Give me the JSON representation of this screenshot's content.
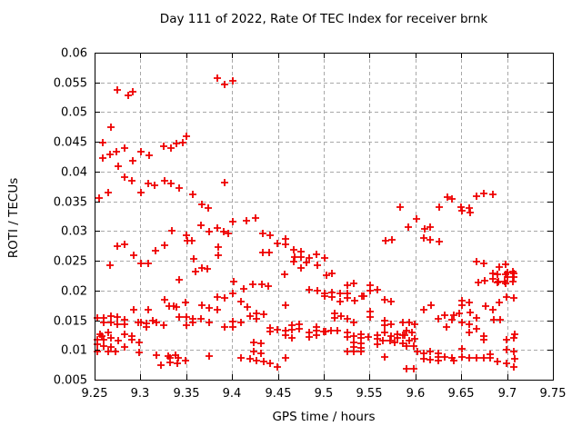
{
  "chart_data": {
    "type": "scatter",
    "title": "Day 111 of 2022, Rate Of TEC Index for receiver brnk",
    "xlabel": "GPS time / hours",
    "ylabel": "ROTI / TECUs",
    "xlim": [
      9.25,
      9.75
    ],
    "ylim": [
      0.005,
      0.06
    ],
    "xticks": [
      9.25,
      9.3,
      9.35,
      9.4,
      9.45,
      9.5,
      9.55,
      9.6,
      9.65,
      9.7,
      9.75
    ],
    "yticks": [
      0.005,
      0.01,
      0.015,
      0.02,
      0.025,
      0.03,
      0.035,
      0.04,
      0.045,
      0.05,
      0.055,
      0.06
    ],
    "xtick_labels": [
      "9.25",
      "9.3",
      "9.35",
      "9.4",
      "9.45",
      "9.5",
      "9.55",
      "9.6",
      "9.65",
      "9.7",
      "9.75"
    ],
    "ytick_labels": [
      "0.005",
      "0.01",
      "0.015",
      "0.02",
      "0.025",
      "0.03",
      "0.035",
      "0.04",
      "0.045",
      "0.05",
      "0.055",
      "0.06"
    ],
    "grid": "dashed",
    "grid_color": "#a8a8a8",
    "border_color": "#000000",
    "background": "#ffffff",
    "legend_position": "none",
    "marker": "plus",
    "marker_color": "#ee0000",
    "marker_size": 9,
    "points": [
      [
        9.2748,
        0.0537
      ],
      [
        9.2864,
        0.0528
      ],
      [
        9.2917,
        0.0535
      ],
      [
        9.3836,
        0.0557
      ],
      [
        9.3922,
        0.0546
      ],
      [
        9.4011,
        0.0553
      ],
      [
        9.2676,
        0.0474
      ],
      [
        9.2586,
        0.0449
      ],
      [
        9.2586,
        0.0423
      ],
      [
        9.2665,
        0.0429
      ],
      [
        9.2741,
        0.0434
      ],
      [
        9.283,
        0.044
      ],
      [
        9.2917,
        0.0418
      ],
      [
        9.3006,
        0.0433
      ],
      [
        9.3095,
        0.0428
      ],
      [
        9.3254,
        0.0442
      ],
      [
        9.3333,
        0.044
      ],
      [
        9.3393,
        0.0447
      ],
      [
        9.3462,
        0.0449
      ],
      [
        9.3502,
        0.046
      ],
      [
        9.2758,
        0.0409
      ],
      [
        9.283,
        0.039
      ],
      [
        9.2904,
        0.0385
      ],
      [
        9.3003,
        0.0364
      ],
      [
        9.3085,
        0.038
      ],
      [
        9.3151,
        0.0377
      ],
      [
        9.3267,
        0.0385
      ],
      [
        9.3337,
        0.038
      ],
      [
        9.342,
        0.0372
      ],
      [
        9.3915,
        0.0381
      ],
      [
        9.2645,
        0.0365
      ],
      [
        9.2553,
        0.0355
      ],
      [
        9.3574,
        0.0361
      ],
      [
        9.3674,
        0.0345
      ],
      [
        9.374,
        0.0338
      ],
      [
        9.4011,
        0.0316
      ],
      [
        9.3664,
        0.0309
      ],
      [
        9.3747,
        0.0299
      ],
      [
        9.3839,
        0.0305
      ],
      [
        9.3906,
        0.0299
      ],
      [
        9.3955,
        0.0296
      ],
      [
        9.416,
        0.0317
      ],
      [
        9.4259,
        0.0322
      ],
      [
        9.3343,
        0.03
      ],
      [
        9.3499,
        0.0293
      ],
      [
        9.3509,
        0.0283
      ],
      [
        9.3565,
        0.0284
      ],
      [
        9.3267,
        0.0276
      ],
      [
        9.3168,
        0.0267
      ],
      [
        9.2751,
        0.0274
      ],
      [
        9.283,
        0.0278
      ],
      [
        9.2923,
        0.026
      ],
      [
        9.3006,
        0.0246
      ],
      [
        9.3082,
        0.0246
      ],
      [
        9.2665,
        0.0243
      ],
      [
        9.3585,
        0.0253
      ],
      [
        9.3674,
        0.0238
      ],
      [
        9.373,
        0.0237
      ],
      [
        9.3849,
        0.0273
      ],
      [
        9.3849,
        0.0259
      ],
      [
        9.3601,
        0.0232
      ],
      [
        9.3426,
        0.0218
      ],
      [
        9.4021,
        0.0215
      ],
      [
        9.4127,
        0.0203
      ],
      [
        9.4332,
        0.0296
      ],
      [
        9.4415,
        0.0293
      ],
      [
        9.4497,
        0.0279
      ],
      [
        9.458,
        0.0287
      ],
      [
        9.458,
        0.0278
      ],
      [
        9.4332,
        0.0264
      ],
      [
        9.4405,
        0.0264
      ],
      [
        9.4669,
        0.0268
      ],
      [
        9.4752,
        0.0266
      ],
      [
        9.4679,
        0.0256
      ],
      [
        9.4752,
        0.0257
      ],
      [
        9.4669,
        0.0248
      ],
      [
        9.4844,
        0.0254
      ],
      [
        9.4815,
        0.0247
      ],
      [
        9.4921,
        0.0261
      ],
      [
        9.4927,
        0.0243
      ],
      [
        9.501,
        0.0255
      ],
      [
        9.4755,
        0.0238
      ],
      [
        9.5672,
        0.0283
      ],
      [
        9.5748,
        0.0285
      ],
      [
        9.5833,
        0.0341
      ],
      [
        9.6015,
        0.0321
      ],
      [
        9.5926,
        0.0307
      ],
      [
        9.6104,
        0.0304
      ],
      [
        9.6164,
        0.0306
      ],
      [
        9.6091,
        0.0288
      ],
      [
        9.6164,
        0.0286
      ],
      [
        9.6257,
        0.0282
      ],
      [
        9.6263,
        0.0341
      ],
      [
        9.6346,
        0.0357
      ],
      [
        9.6395,
        0.0354
      ],
      [
        9.6495,
        0.034
      ],
      [
        9.6511,
        0.0334
      ],
      [
        9.6587,
        0.0338
      ],
      [
        9.6594,
        0.0331
      ],
      [
        9.6667,
        0.0358
      ],
      [
        9.6743,
        0.0363
      ],
      [
        9.6842,
        0.0362
      ],
      [
        9.6667,
        0.0248
      ],
      [
        9.6743,
        0.0246
      ],
      [
        9.6915,
        0.0239
      ],
      [
        9.6981,
        0.0244
      ],
      [
        9.7007,
        0.023
      ],
      [
        9.7067,
        0.0232
      ],
      [
        9.7067,
        0.0223
      ],
      [
        9.7007,
        0.0222
      ],
      [
        9.6902,
        0.0215
      ],
      [
        9.6974,
        0.0215
      ],
      [
        9.7067,
        0.0215
      ],
      [
        9.6687,
        0.0214
      ],
      [
        9.6753,
        0.0216
      ],
      [
        9.6842,
        0.0219
      ],
      [
        9.6842,
        0.0229
      ],
      [
        9.6898,
        0.0227
      ],
      [
        9.6898,
        0.0213
      ],
      [
        9.6984,
        0.0227
      ],
      [
        9.6984,
        0.0212
      ],
      [
        9.7073,
        0.0229
      ],
      [
        9.7073,
        0.0222
      ],
      [
        9.457,
        0.0227
      ],
      [
        9.5027,
        0.0226
      ],
      [
        9.5093,
        0.0229
      ],
      [
        9.5331,
        0.0212
      ],
      [
        9.5258,
        0.0209
      ],
      [
        9.5506,
        0.0209
      ],
      [
        9.4227,
        0.021
      ],
      [
        9.4326,
        0.021
      ],
      [
        9.4399,
        0.0208
      ],
      [
        9.4845,
        0.0202
      ],
      [
        9.4934,
        0.0199
      ],
      [
        9.501,
        0.0195
      ],
      [
        9.501,
        0.019
      ],
      [
        9.5093,
        0.0197
      ],
      [
        9.5093,
        0.0189
      ],
      [
        9.5175,
        0.0195
      ],
      [
        9.5175,
        0.0182
      ],
      [
        9.5258,
        0.0195
      ],
      [
        9.5258,
        0.0187
      ],
      [
        9.5341,
        0.0183
      ],
      [
        9.542,
        0.019
      ],
      [
        9.544,
        0.019
      ],
      [
        9.5506,
        0.02
      ],
      [
        9.5582,
        0.0202
      ],
      [
        9.3261,
        0.0185
      ],
      [
        9.3313,
        0.0173
      ],
      [
        9.336,
        0.0173
      ],
      [
        9.3393,
        0.0172
      ],
      [
        9.3492,
        0.018
      ],
      [
        9.3674,
        0.0176
      ],
      [
        9.375,
        0.017
      ],
      [
        9.3839,
        0.0168
      ],
      [
        9.3839,
        0.0189
      ],
      [
        9.3922,
        0.0188
      ],
      [
        9.4005,
        0.0195
      ],
      [
        9.4094,
        0.0182
      ],
      [
        9.2923,
        0.0167
      ],
      [
        9.3088,
        0.0168
      ],
      [
        9.2527,
        0.0154
      ],
      [
        9.2599,
        0.0154
      ],
      [
        9.2681,
        0.0157
      ],
      [
        9.2748,
        0.0156
      ],
      [
        9.2599,
        0.0147
      ],
      [
        9.2681,
        0.0147
      ],
      [
        9.2748,
        0.0143
      ],
      [
        9.283,
        0.0151
      ],
      [
        9.283,
        0.0143
      ],
      [
        9.2979,
        0.0147
      ],
      [
        9.3003,
        0.0147
      ],
      [
        9.3069,
        0.0144
      ],
      [
        9.3069,
        0.0138
      ],
      [
        9.3135,
        0.015
      ],
      [
        9.3177,
        0.0147
      ],
      [
        9.3254,
        0.0142
      ],
      [
        9.342,
        0.0156
      ],
      [
        9.3499,
        0.0156
      ],
      [
        9.3574,
        0.0152
      ],
      [
        9.3499,
        0.0142
      ],
      [
        9.3574,
        0.0146
      ],
      [
        9.3664,
        0.0152
      ],
      [
        9.3747,
        0.0147
      ],
      [
        9.4005,
        0.0148
      ],
      [
        9.4094,
        0.0146
      ],
      [
        9.3922,
        0.0139
      ],
      [
        9.4005,
        0.0139
      ],
      [
        9.417,
        0.0172
      ],
      [
        9.458,
        0.0175
      ],
      [
        9.5661,
        0.0185
      ],
      [
        9.5737,
        0.0182
      ],
      [
        9.4266,
        0.0161
      ],
      [
        9.4348,
        0.016
      ],
      [
        9.4193,
        0.0157
      ],
      [
        9.4266,
        0.0153
      ],
      [
        9.5119,
        0.0161
      ],
      [
        9.5119,
        0.0154
      ],
      [
        9.5192,
        0.0157
      ],
      [
        9.5258,
        0.0153
      ],
      [
        9.5331,
        0.0147
      ],
      [
        9.5506,
        0.0165
      ],
      [
        9.5506,
        0.0156
      ],
      [
        9.5661,
        0.0149
      ],
      [
        9.5661,
        0.0142
      ],
      [
        9.5737,
        0.0143
      ],
      [
        9.4415,
        0.0137
      ],
      [
        9.4415,
        0.0131
      ],
      [
        9.4498,
        0.0134
      ],
      [
        9.458,
        0.0133
      ],
      [
        9.458,
        0.0125
      ],
      [
        9.4657,
        0.0141
      ],
      [
        9.4657,
        0.0134
      ],
      [
        9.4736,
        0.0143
      ],
      [
        9.4736,
        0.0136
      ],
      [
        9.4657,
        0.012
      ],
      [
        9.4845,
        0.0129
      ],
      [
        9.4845,
        0.0122
      ],
      [
        9.4921,
        0.0139
      ],
      [
        9.4921,
        0.0132
      ],
      [
        9.4921,
        0.0125
      ],
      [
        9.4998,
        0.0131
      ],
      [
        9.5018,
        0.0131
      ],
      [
        9.5076,
        0.0132
      ],
      [
        9.5152,
        0.0132
      ],
      [
        9.5258,
        0.0129
      ],
      [
        9.5258,
        0.0122
      ],
      [
        9.5331,
        0.0124
      ],
      [
        9.5407,
        0.0126
      ],
      [
        9.5407,
        0.012
      ],
      [
        9.5483,
        0.0122
      ],
      [
        9.5582,
        0.0125
      ],
      [
        9.5582,
        0.0119
      ],
      [
        9.5661,
        0.0129
      ],
      [
        9.5737,
        0.0124
      ],
      [
        9.5803,
        0.0127
      ],
      [
        9.5803,
        0.012
      ],
      [
        9.2563,
        0.0126
      ],
      [
        9.2583,
        0.0124
      ],
      [
        9.2649,
        0.0129
      ],
      [
        9.2527,
        0.0117
      ],
      [
        9.2599,
        0.0117
      ],
      [
        9.2681,
        0.012
      ],
      [
        9.2527,
        0.0109
      ],
      [
        9.2599,
        0.0107
      ],
      [
        9.2681,
        0.0105
      ],
      [
        9.2758,
        0.0115
      ],
      [
        9.283,
        0.0126
      ],
      [
        9.2903,
        0.0124
      ],
      [
        9.2903,
        0.0117
      ],
      [
        9.283,
        0.0105
      ],
      [
        9.2989,
        0.0112
      ],
      [
        9.586,
        0.0146
      ],
      [
        9.5932,
        0.0146
      ],
      [
        9.5992,
        0.0143
      ],
      [
        9.5906,
        0.0133
      ],
      [
        9.5966,
        0.0129
      ],
      [
        9.586,
        0.0125
      ],
      [
        9.588,
        0.0125
      ],
      [
        9.5932,
        0.0115
      ],
      [
        9.5992,
        0.0119
      ],
      [
        9.586,
        0.0111
      ],
      [
        9.5906,
        0.0107
      ],
      [
        9.598,
        0.0106
      ],
      [
        9.572,
        0.0115
      ],
      [
        9.577,
        0.0112
      ],
      [
        9.5648,
        0.0115
      ],
      [
        9.5582,
        0.0109
      ],
      [
        9.424,
        0.0112
      ],
      [
        9.4316,
        0.0111
      ],
      [
        9.5331,
        0.0112
      ],
      [
        9.5407,
        0.0111
      ],
      [
        9.5331,
        0.0105
      ],
      [
        9.5407,
        0.0103
      ],
      [
        9.6511,
        0.0102
      ],
      [
        9.6997,
        0.0101
      ],
      [
        9.2527,
        0.0098
      ],
      [
        9.2649,
        0.0097
      ],
      [
        9.2731,
        0.0097
      ],
      [
        9.2989,
        0.0096
      ],
      [
        9.3304,
        0.009
      ],
      [
        9.338,
        0.0092
      ],
      [
        9.3227,
        0.0075
      ],
      [
        9.3327,
        0.0079
      ],
      [
        9.3403,
        0.0077
      ],
      [
        9.3492,
        0.0082
      ],
      [
        9.3327,
        0.0087
      ],
      [
        9.3413,
        0.0087
      ],
      [
        9.375,
        0.0089
      ],
      [
        9.4097,
        0.0087
      ],
      [
        9.3178,
        0.0092
      ],
      [
        9.424,
        0.0097
      ],
      [
        9.4316,
        0.0095
      ],
      [
        9.4193,
        0.0085
      ],
      [
        9.4266,
        0.0082
      ],
      [
        9.4348,
        0.008
      ],
      [
        9.4415,
        0.0077
      ],
      [
        9.4491,
        0.0071
      ],
      [
        9.458,
        0.0086
      ],
      [
        9.5258,
        0.0097
      ],
      [
        9.5331,
        0.0098
      ],
      [
        9.5407,
        0.0097
      ],
      [
        9.5661,
        0.0088
      ],
      [
        9.6025,
        0.0098
      ],
      [
        9.6091,
        0.0095
      ],
      [
        9.6157,
        0.0097
      ],
      [
        9.6247,
        0.0095
      ],
      [
        9.6247,
        0.0088
      ],
      [
        9.6091,
        0.0085
      ],
      [
        9.6157,
        0.0083
      ],
      [
        9.6247,
        0.0082
      ],
      [
        9.6323,
        0.0088
      ],
      [
        9.6402,
        0.0087
      ],
      [
        9.6422,
        0.0082
      ],
      [
        9.6511,
        0.0088
      ],
      [
        9.6587,
        0.0087
      ],
      [
        9.6667,
        0.0087
      ],
      [
        9.6743,
        0.0087
      ],
      [
        9.6819,
        0.0087
      ],
      [
        9.6819,
        0.0093
      ],
      [
        9.6898,
        0.008
      ],
      [
        9.6997,
        0.0078
      ],
      [
        9.7073,
        0.0071
      ],
      [
        9.7073,
        0.0097
      ],
      [
        9.7083,
        0.0085
      ],
      [
        9.5906,
        0.0069
      ],
      [
        9.598,
        0.0068
      ],
      [
        9.6997,
        0.0117
      ],
      [
        9.7073,
        0.012
      ],
      [
        9.7083,
        0.0127
      ],
      [
        9.6997,
        0.0189
      ],
      [
        9.7073,
        0.0187
      ],
      [
        9.6918,
        0.018
      ],
      [
        9.6766,
        0.0173
      ],
      [
        9.6842,
        0.0168
      ],
      [
        9.6852,
        0.0151
      ],
      [
        9.6925,
        0.0151
      ],
      [
        9.617,
        0.0176
      ],
      [
        9.6091,
        0.0168
      ],
      [
        9.6247,
        0.0153
      ],
      [
        9.6323,
        0.0158
      ],
      [
        9.6402,
        0.0151
      ],
      [
        9.6336,
        0.0139
      ],
      [
        9.6422,
        0.0158
      ],
      [
        9.6478,
        0.0162
      ],
      [
        9.6511,
        0.0183
      ],
      [
        9.6511,
        0.0175
      ],
      [
        9.6587,
        0.018
      ],
      [
        9.66,
        0.0163
      ],
      [
        9.6511,
        0.0146
      ],
      [
        9.6587,
        0.0143
      ],
      [
        9.6587,
        0.0129
      ],
      [
        9.6667,
        0.0136
      ],
      [
        9.6667,
        0.0154
      ],
      [
        9.6743,
        0.0124
      ],
      [
        9.6743,
        0.0117
      ]
    ]
  }
}
